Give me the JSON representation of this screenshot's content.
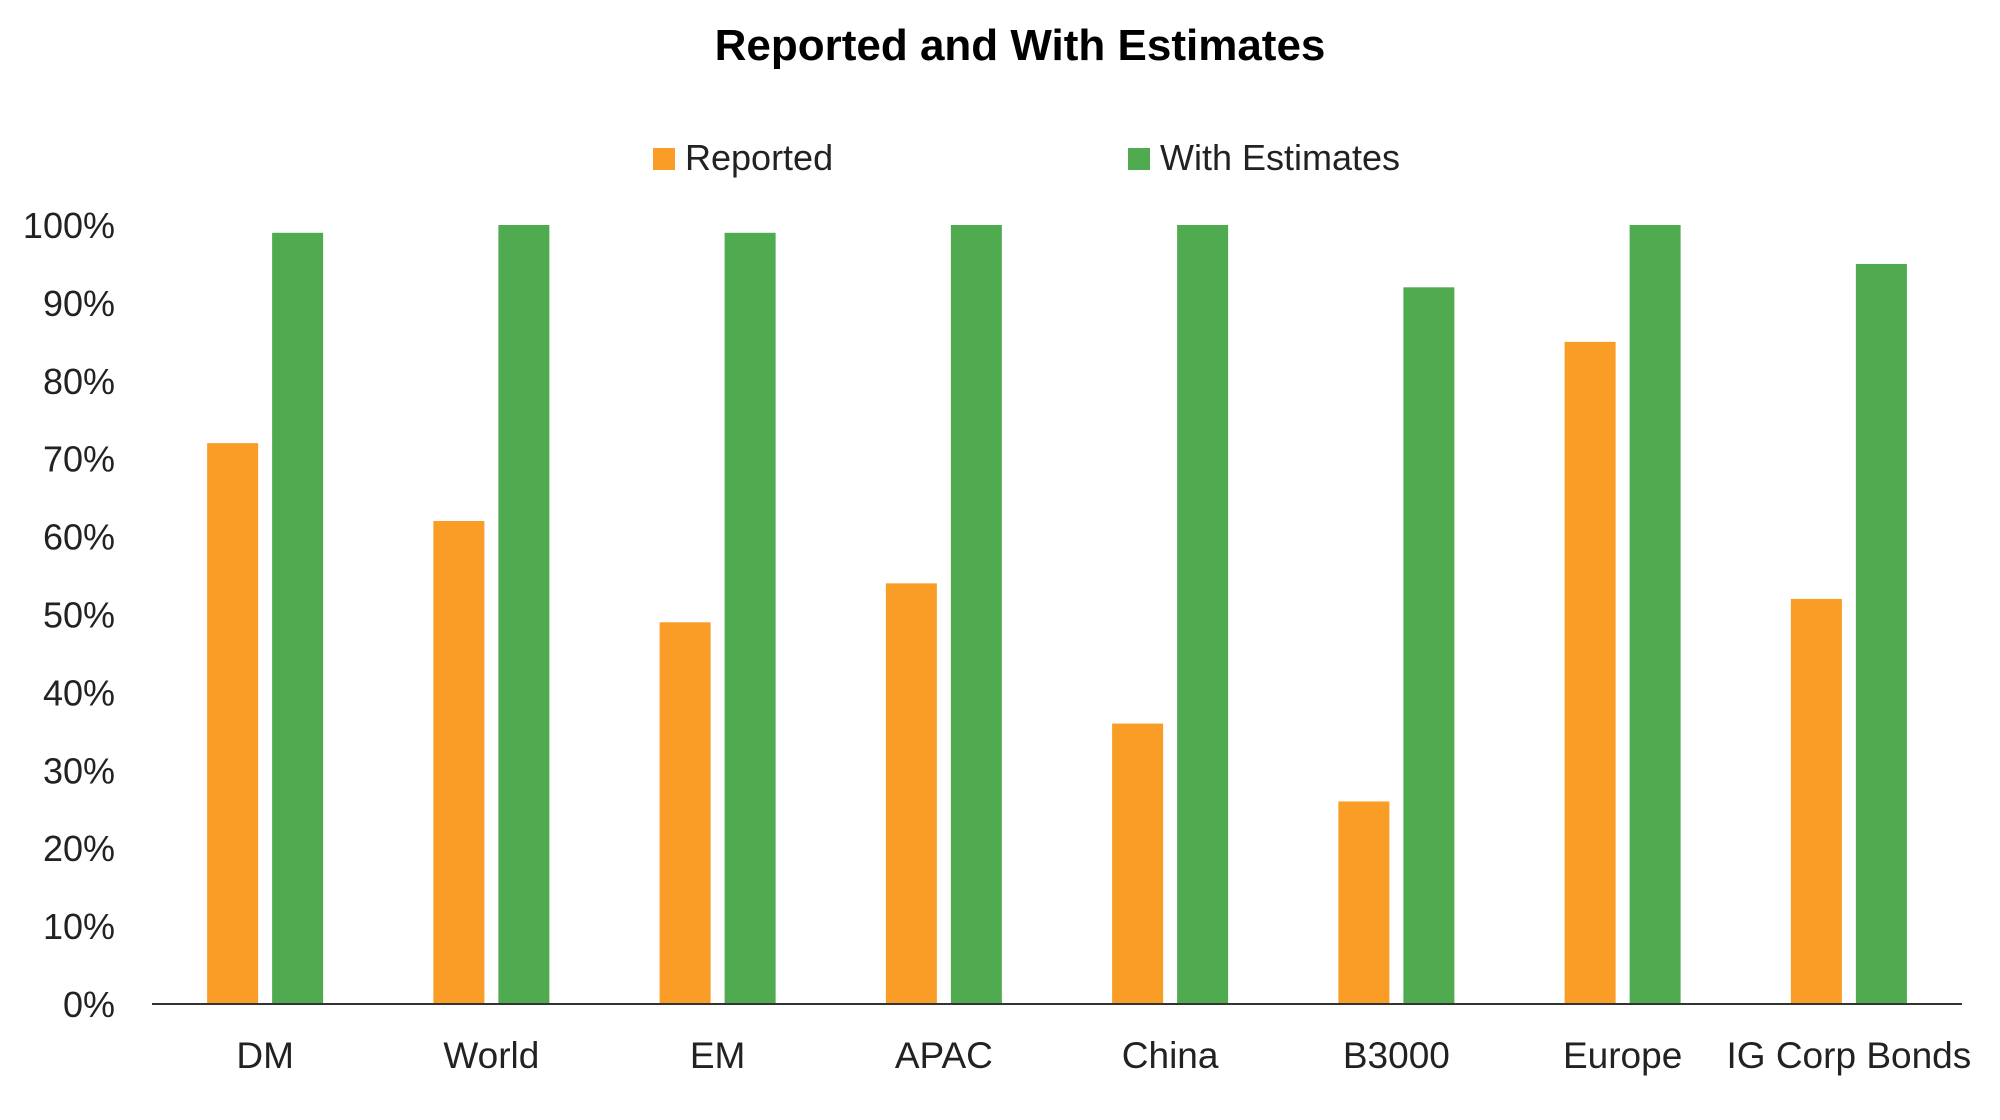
{
  "chart_data": {
    "type": "bar",
    "title": "Reported and With Estimates",
    "xlabel": "",
    "ylabel": "",
    "categories": [
      "DM",
      "World",
      "EM",
      "APAC",
      "China",
      "B3000",
      "Europe",
      "IG Corp Bonds"
    ],
    "series": [
      {
        "name": "Reported",
        "color": "#F99D27",
        "values": [
          72,
          62,
          49,
          54,
          36,
          26,
          85,
          52
        ]
      },
      {
        "name": "With Estimates",
        "color": "#4FAA50",
        "values": [
          99,
          100,
          99,
          100,
          100,
          92,
          100,
          95
        ]
      }
    ],
    "ylim": [
      0,
      100
    ],
    "yticks": [
      0,
      10,
      20,
      30,
      40,
      50,
      60,
      70,
      80,
      90,
      100
    ],
    "ytick_labels": [
      "0%",
      "10%",
      "20%",
      "30%",
      "40%",
      "50%",
      "60%",
      "70%",
      "80%",
      "90%",
      "100%"
    ],
    "grid": false,
    "legend_position": "top-center"
  }
}
